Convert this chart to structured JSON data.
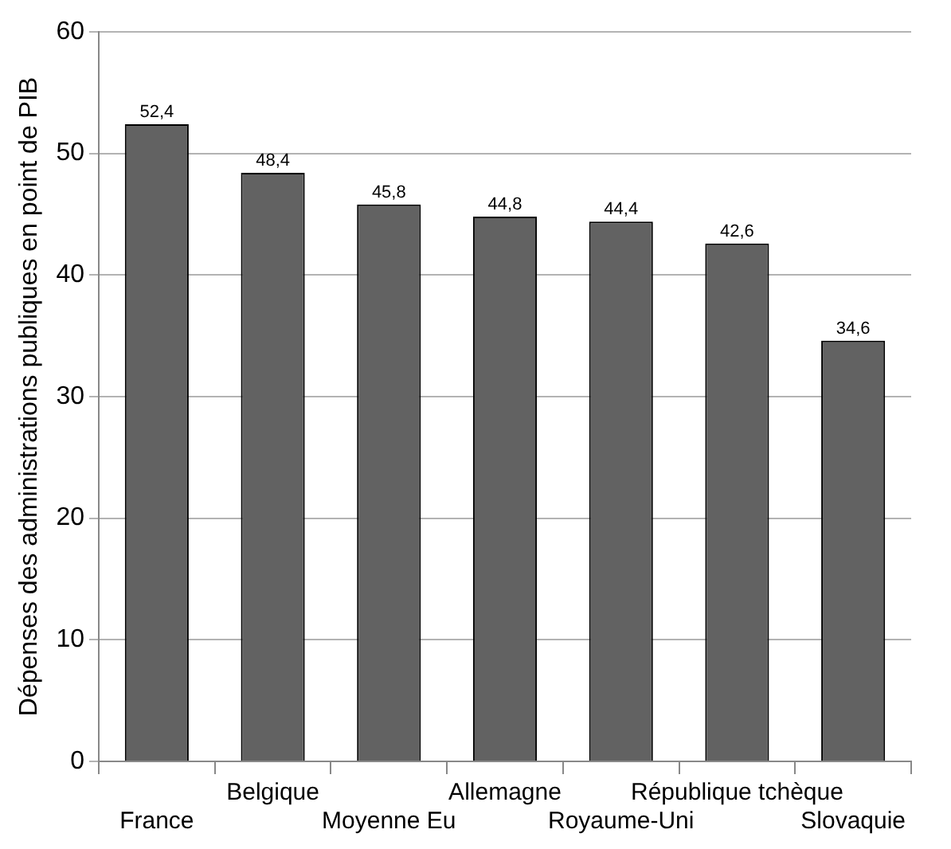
{
  "chart_data": {
    "type": "bar",
    "ylabel": "Dépenses des administrations publiques en point de PIB",
    "categories": [
      "France",
      "Belgique",
      "Moyenne Eu",
      "Allemagne",
      "Royaume-Uni",
      "République tchèque",
      "Slovaquie"
    ],
    "values": [
      52.4,
      48.4,
      45.8,
      44.8,
      44.4,
      42.6,
      34.6
    ],
    "value_labels": [
      "52,4",
      "48,4",
      "45,8",
      "44,8",
      "44,4",
      "42,6",
      "34,6"
    ],
    "color": "#626262",
    "ylim": [
      0,
      60
    ],
    "yticks": [
      0,
      10,
      20,
      30,
      40,
      50,
      60
    ],
    "grid": "y",
    "legend": false
  }
}
